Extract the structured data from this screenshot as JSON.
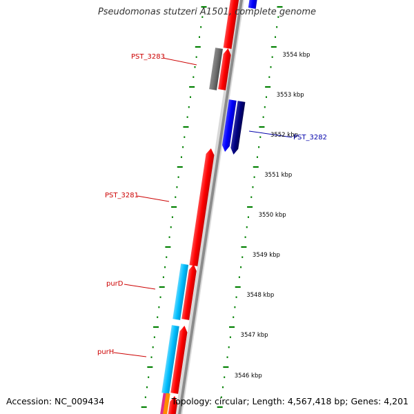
{
  "title": "Pseudomonas stutzeri A1501, complete genome",
  "footer": {
    "accession_label": "Accession:",
    "accession": "NC_009434",
    "topology_label": "Topology:",
    "topology": "circular;",
    "length_label": "Length:",
    "length": "4,567,418 bp;",
    "genes_label": "Genes:",
    "genes": "4,201"
  },
  "scale_labels": [
    "3554 kbp",
    "3553 kbp",
    "3552 kbp",
    "3551 kbp",
    "3550 kbp",
    "3549 kbp",
    "3548 kbp",
    "3547 kbp",
    "3546 kbp"
  ],
  "gene_labels": [
    {
      "name": "PST_3283",
      "strand": "forward",
      "color": "#cc0000"
    },
    {
      "name": "PST_3282",
      "strand": "reverse",
      "color": "#0000aa"
    },
    {
      "name": "PST_3281",
      "strand": "forward",
      "color": "#cc0000"
    },
    {
      "name": "purD",
      "strand": "forward",
      "color": "#cc0000"
    },
    {
      "name": "purH",
      "strand": "forward",
      "color": "#cc0000"
    }
  ],
  "colors": {
    "forward_cds": "#ff0000",
    "reverse_cds": "#0000ff",
    "reverse_cds_dark": "#000080",
    "cog_cyan": "#00bfff",
    "cog_gray": "#707070",
    "backbone": "#8c8c8c",
    "tick_green": "#008000",
    "forward_label": "#cc0000",
    "reverse_label": "#0000aa"
  }
}
